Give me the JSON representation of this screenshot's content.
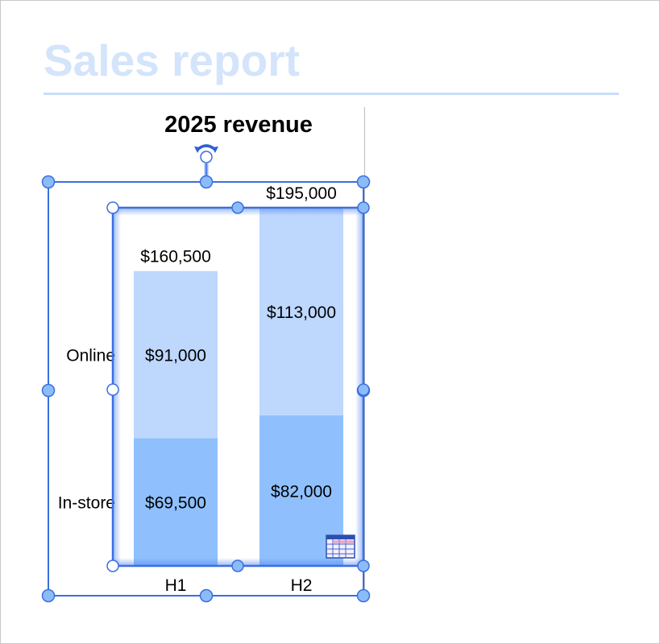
{
  "document": {
    "title": "Sales report"
  },
  "colors": {
    "title": "#d3e4fb",
    "rule": "#c9ddfb",
    "selection": "#3a6fe0",
    "handle_fill": "#8bbcf7",
    "online_series": "#bdd7fd",
    "instore_series": "#8fc0fd"
  },
  "icons": {
    "rotate_handle": "rotate-arrow-icon",
    "data_table": "data-table-icon"
  },
  "chart_data": {
    "type": "bar",
    "stacked": true,
    "title": "2025 revenue",
    "categories": [
      "H1",
      "H2"
    ],
    "series": [
      {
        "name": "In-store",
        "values": [
          69500,
          82000
        ],
        "labels": [
          "$69,500",
          "$82,000"
        ]
      },
      {
        "name": "Online",
        "values": [
          91000,
          113000
        ],
        "labels": [
          "$91,000",
          "$113,000"
        ]
      }
    ],
    "totals": [
      160500,
      195000
    ],
    "total_labels": [
      "$160,500",
      "$195,000"
    ],
    "ylim": [
      0,
      195000
    ],
    "yaxis_visible": false,
    "grid": false,
    "legend": "left, inline series labels",
    "selected": true
  }
}
